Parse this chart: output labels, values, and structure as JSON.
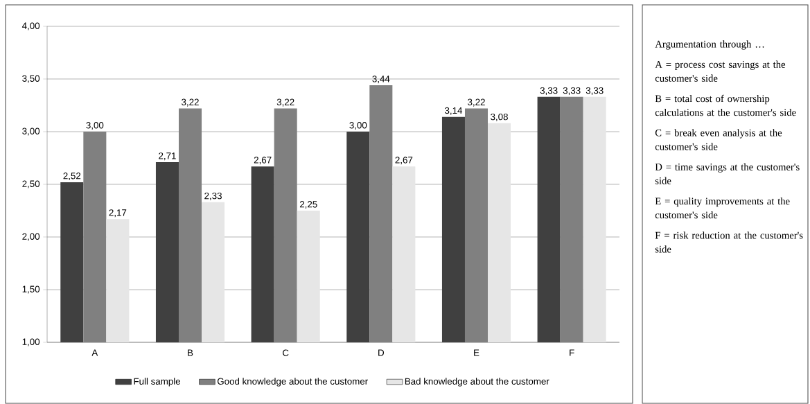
{
  "chart_data": {
    "type": "bar",
    "categories": [
      "A",
      "B",
      "C",
      "D",
      "E",
      "F"
    ],
    "series": [
      {
        "name": "Full sample",
        "color": "#404040",
        "values": [
          2.52,
          2.71,
          2.67,
          3.0,
          3.14,
          3.33
        ],
        "value_labels": [
          "2,52",
          "2,71",
          "2,67",
          "3,00",
          "3,14",
          "3,33"
        ]
      },
      {
        "name": "Good knowledge about the customer",
        "color": "#808080",
        "values": [
          3.0,
          3.22,
          3.22,
          3.44,
          3.22,
          3.33
        ],
        "value_labels": [
          "3,00",
          "3,22",
          "3,22",
          "3,44",
          "3,22",
          "3,33"
        ]
      },
      {
        "name": "Bad knowledge about the customer",
        "color": "#e6e6e6",
        "values": [
          2.17,
          2.33,
          2.25,
          2.67,
          3.08,
          3.33
        ],
        "value_labels": [
          "2,17",
          "2,33",
          "2,25",
          "2,67",
          "3,08",
          "3,33"
        ]
      }
    ],
    "ylim": [
      1,
      4
    ],
    "yticks": [
      {
        "value": 1,
        "label": "1,00"
      },
      {
        "value": 1.5,
        "label": "1,50"
      },
      {
        "value": 2,
        "label": "2,00"
      },
      {
        "value": 2.5,
        "label": "2,50"
      },
      {
        "value": 3,
        "label": "3,00"
      },
      {
        "value": 3.5,
        "label": "3,50"
      },
      {
        "value": 4,
        "label": "4,00"
      }
    ],
    "grid": "y",
    "legend": "bottom",
    "annotations": [
      "Argumentation through …",
      "A = process cost savings at the customer's side",
      "B = total cost of ownership calculations at the customer's side",
      "C = break even analysis at the customer's side",
      "D = time savings at the customer's side",
      "E = quality improvements at the customer's side",
      "F = risk reduction at the customer's side"
    ]
  }
}
